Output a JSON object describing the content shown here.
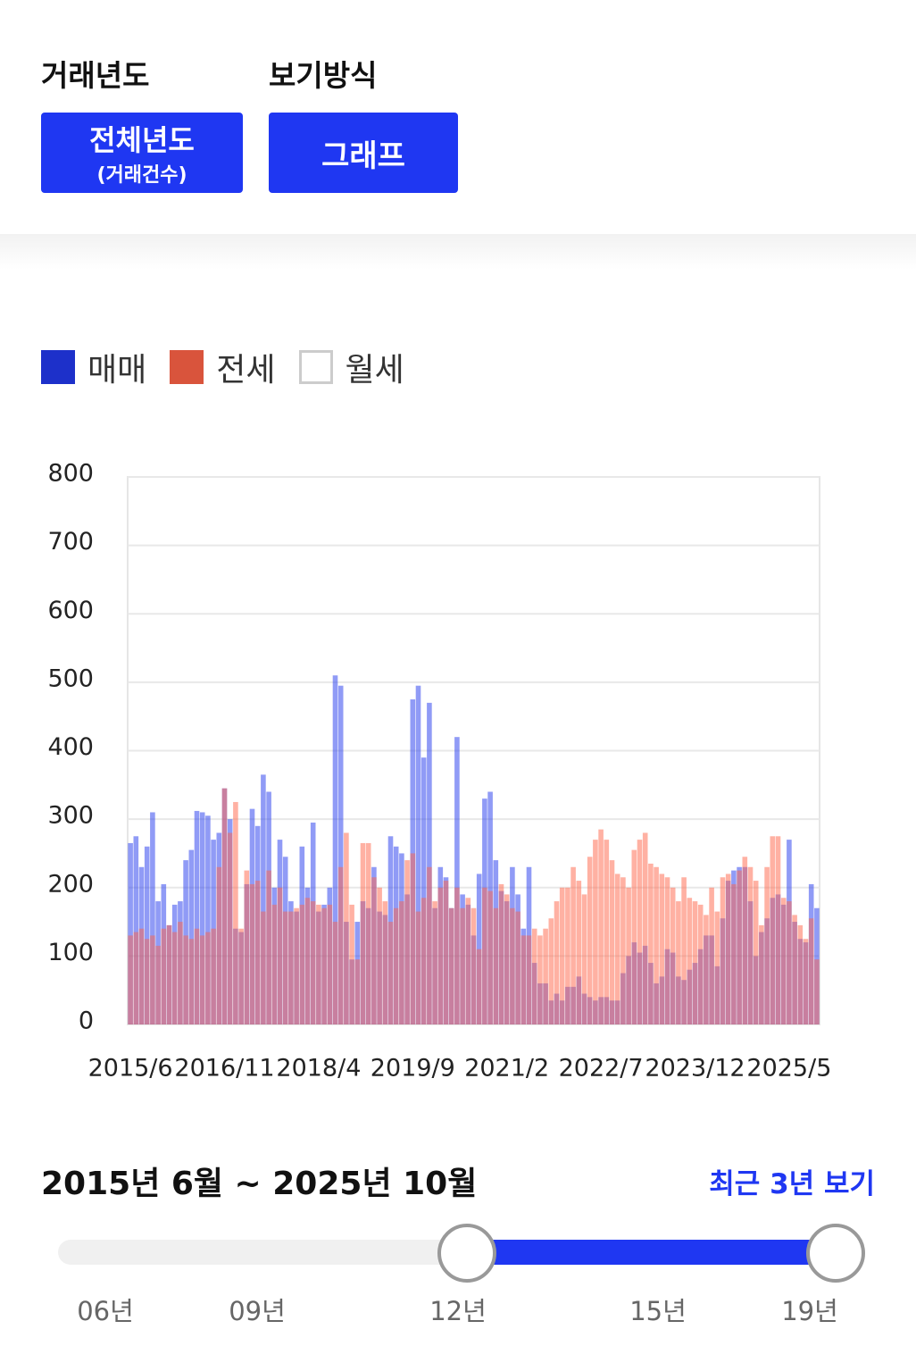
{
  "filters": {
    "year_label": "거래년도",
    "year_button": "전체년도",
    "year_button_sub": "(거래건수)",
    "view_label": "보기방식",
    "view_button": "그래프"
  },
  "chart_data": {
    "type": "bar",
    "categories": [
      "2015/6",
      null,
      null,
      null,
      null,
      null,
      null,
      null,
      null,
      null,
      null,
      null,
      null,
      null,
      null,
      null,
      null,
      "2016/11",
      null,
      null,
      null,
      null,
      null,
      null,
      null,
      null,
      null,
      null,
      null,
      null,
      null,
      null,
      null,
      null,
      "2018/4",
      null,
      null,
      null,
      null,
      null,
      null,
      null,
      null,
      null,
      null,
      null,
      null,
      null,
      null,
      null,
      null,
      "2019/9",
      null,
      null,
      null,
      null,
      null,
      null,
      null,
      null,
      null,
      null,
      null,
      null,
      null,
      null,
      null,
      null,
      "2021/2",
      null,
      null,
      null,
      null,
      null,
      null,
      null,
      null,
      null,
      null,
      null,
      null,
      null,
      null,
      null,
      null,
      "2022/7",
      null,
      null,
      null,
      null,
      null,
      null,
      null,
      null,
      null,
      null,
      null,
      null,
      null,
      null,
      null,
      null,
      "2023/12",
      null,
      null,
      null,
      null,
      null,
      null,
      null,
      null,
      null,
      null,
      null,
      null,
      null,
      null,
      null,
      null,
      "2025/5",
      null,
      null,
      null,
      null,
      null
    ],
    "series": [
      {
        "name": "매매",
        "color": "#2238ee",
        "visible": true,
        "values": [
          265,
          275,
          230,
          260,
          310,
          180,
          205,
          145,
          175,
          180,
          240,
          255,
          312,
          310,
          305,
          270,
          280,
          345,
          300,
          140,
          135,
          205,
          315,
          290,
          365,
          340,
          200,
          270,
          245,
          180,
          165,
          260,
          200,
          295,
          165,
          175,
          200,
          510,
          495,
          150,
          95,
          150,
          180,
          170,
          230,
          165,
          160,
          275,
          260,
          250,
          190,
          475,
          495,
          390,
          470,
          170,
          230,
          215,
          170,
          420,
          190,
          175,
          130,
          220,
          330,
          340,
          240,
          195,
          180,
          230,
          190,
          140,
          230,
          90,
          60,
          60,
          35,
          45,
          35,
          55,
          55,
          70,
          45,
          40,
          35,
          40,
          40,
          35,
          35,
          75,
          100,
          120,
          105,
          115,
          90,
          60,
          70,
          110,
          105,
          70,
          65,
          80,
          90,
          110,
          130,
          130,
          85,
          155,
          210,
          225,
          230,
          230,
          180,
          100,
          135,
          155,
          185,
          190,
          175,
          270,
          150,
          125,
          120,
          205,
          170
        ]
      },
      {
        "name": "전세",
        "color": "#ff6347",
        "visible": true,
        "values": [
          130,
          135,
          140,
          125,
          130,
          115,
          140,
          145,
          135,
          150,
          130,
          125,
          140,
          130,
          135,
          140,
          230,
          345,
          280,
          325,
          140,
          225,
          205,
          210,
          165,
          225,
          175,
          200,
          165,
          165,
          170,
          175,
          185,
          180,
          175,
          170,
          175,
          150,
          230,
          280,
          175,
          95,
          265,
          265,
          215,
          200,
          180,
          150,
          170,
          180,
          240,
          250,
          165,
          185,
          230,
          180,
          200,
          210,
          170,
          200,
          170,
          185,
          170,
          110,
          200,
          195,
          170,
          205,
          190,
          170,
          165,
          130,
          130,
          140,
          130,
          140,
          155,
          180,
          200,
          200,
          230,
          210,
          190,
          245,
          270,
          285,
          270,
          240,
          220,
          215,
          200,
          255,
          270,
          280,
          235,
          230,
          220,
          215,
          200,
          180,
          215,
          185,
          180,
          175,
          160,
          200,
          165,
          215,
          220,
          205,
          225,
          245,
          230,
          210,
          145,
          230,
          275,
          275,
          185,
          180,
          160,
          145,
          125,
          155,
          95
        ]
      },
      {
        "name": "월세",
        "color": "#ffffff",
        "visible": false
      }
    ],
    "ylim": [
      0,
      800
    ],
    "yticks": [
      0,
      100,
      200,
      300,
      400,
      500,
      600,
      700,
      800
    ],
    "grid": true
  },
  "range": {
    "text": "2015년 6월 ~ 2025년 10월",
    "link": "최근 3년 보기",
    "labels": [
      "06년",
      "09년",
      "12년",
      "15년",
      "19년"
    ]
  }
}
